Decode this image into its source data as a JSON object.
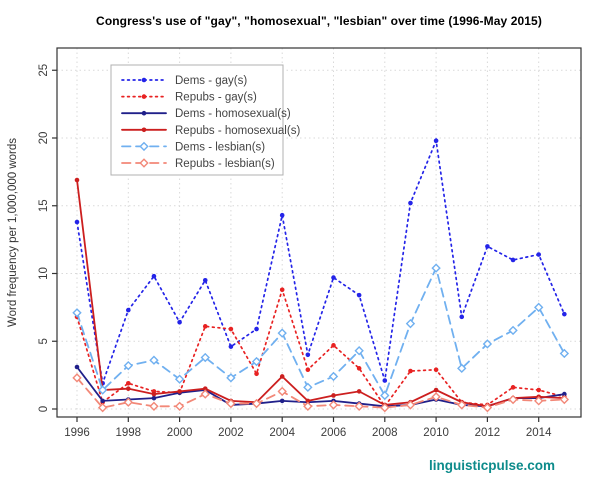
{
  "title": "Congress's use of \"gay\", \"homosexual\", \"lesbian\" over time (1996-May 2015)",
  "watermark": "linguisticpulse.com",
  "colors": {
    "dems_gay": "#2424e8",
    "repubs_gay": "#e82222",
    "dems_homosexual": "#20208a",
    "repubs_homosexual": "#cc1f1f",
    "dems_lesbian": "#70b0f0",
    "repubs_lesbian": "#f28878",
    "grid": "#d9d9d9",
    "axis": "#333333",
    "tick_label": "#3d3d3d",
    "legend_text": "#444444",
    "watermark": "#0d8b8b"
  },
  "chart_data": {
    "type": "line",
    "title": "Congress's use of \"gay\", \"homosexual\", \"lesbian\" over time (1996-May 2015)",
    "xlabel": "",
    "ylabel": "Word frequency per 1,000,000 words",
    "x": [
      1996,
      1997,
      1998,
      1999,
      2000,
      2001,
      2002,
      2003,
      2004,
      2005,
      2006,
      2007,
      2008,
      2009,
      2010,
      2011,
      2012,
      2013,
      2014,
      2015
    ],
    "x_ticks": [
      1996,
      1998,
      2000,
      2002,
      2004,
      2006,
      2008,
      2010,
      2012,
      2014
    ],
    "y_ticks": [
      0,
      5,
      10,
      15,
      20,
      25
    ],
    "ylim": [
      0,
      25
    ],
    "grid": true,
    "legend_position": "top-left",
    "series": [
      {
        "name": "Dems - gay(s)",
        "color": "#2424e8",
        "line_style": "dotted",
        "marker": "filled-circle",
        "values": [
          13.8,
          1.9,
          7.3,
          9.8,
          6.4,
          9.5,
          4.6,
          5.9,
          14.3,
          4.0,
          9.7,
          8.4,
          2.1,
          15.2,
          19.8,
          6.8,
          12.0,
          11.0,
          11.4,
          7.0
        ]
      },
      {
        "name": "Repubs - gay(s)",
        "color": "#e82222",
        "line_style": "dotted",
        "marker": "filled-circle",
        "values": [
          6.8,
          0.5,
          1.9,
          1.3,
          1.2,
          6.1,
          5.9,
          2.6,
          8.8,
          2.9,
          4.7,
          3.0,
          0.2,
          2.8,
          2.9,
          0.5,
          0.3,
          1.6,
          1.4,
          0.9
        ]
      },
      {
        "name": "Dems - homosexual(s)",
        "color": "#20208a",
        "line_style": "solid",
        "marker": "filled-circle",
        "values": [
          3.1,
          0.6,
          0.7,
          0.8,
          1.2,
          1.4,
          0.3,
          0.4,
          0.6,
          0.5,
          0.6,
          0.4,
          0.2,
          0.3,
          0.7,
          0.3,
          0.2,
          0.8,
          0.8,
          1.1
        ]
      },
      {
        "name": "Repubs - homosexual(s)",
        "color": "#cc1f1f",
        "line_style": "solid",
        "marker": "filled-circle",
        "values": [
          16.9,
          1.4,
          1.5,
          1.1,
          1.3,
          1.5,
          0.6,
          0.5,
          2.4,
          0.6,
          1.0,
          1.3,
          0.3,
          0.5,
          1.4,
          0.5,
          0.2,
          0.8,
          0.9,
          0.8
        ]
      },
      {
        "name": "Dems - lesbian(s)",
        "color": "#70b0f0",
        "line_style": "dashed",
        "marker": "open-diamond",
        "values": [
          7.1,
          1.4,
          3.2,
          3.6,
          2.2,
          3.8,
          2.3,
          3.5,
          5.6,
          1.6,
          2.4,
          4.3,
          1.0,
          6.3,
          10.4,
          3.0,
          4.8,
          5.8,
          7.5,
          4.1
        ]
      },
      {
        "name": "Repubs - lesbian(s)",
        "color": "#f28878",
        "line_style": "dashed",
        "marker": "open-diamond",
        "values": [
          2.3,
          0.1,
          0.5,
          0.2,
          0.2,
          1.1,
          0.4,
          0.4,
          1.3,
          0.2,
          0.3,
          0.2,
          0.1,
          0.3,
          0.9,
          0.3,
          0.1,
          0.7,
          0.6,
          0.7
        ]
      }
    ]
  }
}
